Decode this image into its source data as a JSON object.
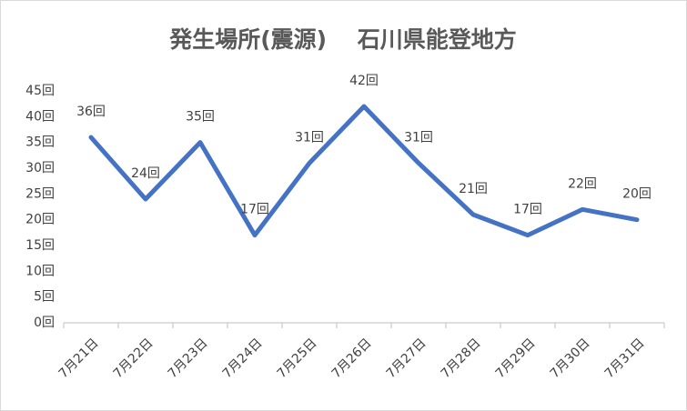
{
  "chart_data": {
    "type": "line",
    "title": "発生場所(震源)　 石川県能登地方",
    "categories": [
      "7月21日",
      "7月22日",
      "7月23日",
      "7月24日",
      "7月25日",
      "7月26日",
      "7月27日",
      "7月28日",
      "7月29日",
      "7月30日",
      "7月31日"
    ],
    "values": [
      36,
      24,
      35,
      17,
      31,
      42,
      31,
      21,
      17,
      22,
      20
    ],
    "value_labels": [
      "36回",
      "24回",
      "35回",
      "17回",
      "31回",
      "42回",
      "31回",
      "21回",
      "17回",
      "22回",
      "20回"
    ],
    "color": "#4472c4",
    "ylim": [
      0,
      45
    ],
    "yticks": [
      {
        "value": 0,
        "label": "0回"
      },
      {
        "value": 5,
        "label": "5回"
      },
      {
        "value": 10,
        "label": "10回"
      },
      {
        "value": 15,
        "label": "15回"
      },
      {
        "value": 20,
        "label": "20回"
      },
      {
        "value": 25,
        "label": "25回"
      },
      {
        "value": 30,
        "label": "30回"
      },
      {
        "value": 35,
        "label": "35回"
      },
      {
        "value": 40,
        "label": "40回"
      },
      {
        "value": 45,
        "label": "45回"
      }
    ],
    "grid": false
  }
}
